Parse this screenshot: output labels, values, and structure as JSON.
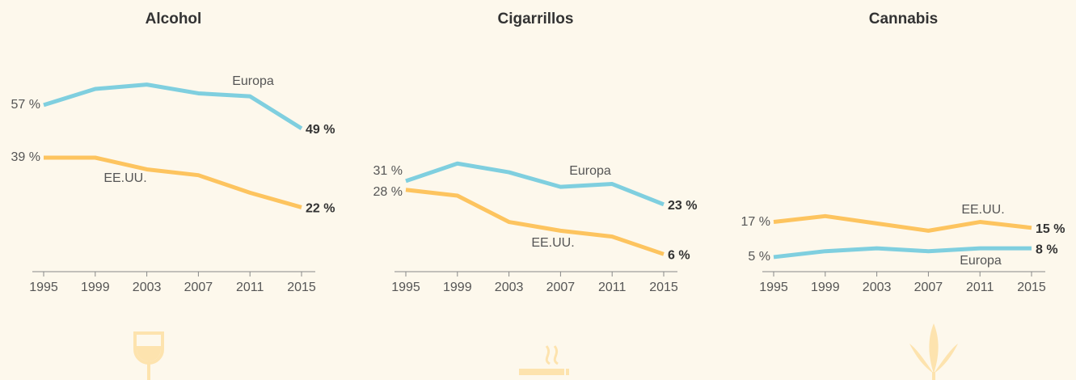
{
  "chart_data": [
    {
      "type": "line",
      "title": "Alcohol",
      "categories": [
        "1995",
        "1999",
        "2003",
        "2007",
        "2011",
        "2015"
      ],
      "ylim": [
        0,
        65
      ],
      "series": [
        {
          "name": "Europa",
          "color": "#7fcfdf",
          "values": [
            57,
            62.5,
            64,
            61,
            60,
            49
          ],
          "value_labels": [
            "57 %",
            null,
            null,
            null,
            null,
            "49 %"
          ]
        },
        {
          "name": "EE.UU.",
          "color": "#fdc45f",
          "values": [
            39,
            39,
            35,
            33,
            27,
            22
          ],
          "value_labels": [
            "39 %",
            null,
            null,
            null,
            null,
            "22 %"
          ]
        }
      ]
    },
    {
      "type": "line",
      "title": "Cigarrillos",
      "categories": [
        "1995",
        "1999",
        "2003",
        "2007",
        "2011",
        "2015"
      ],
      "ylim": [
        0,
        65
      ],
      "series": [
        {
          "name": "Europa",
          "color": "#7fcfdf",
          "values": [
            31,
            37,
            34,
            29,
            30,
            23
          ],
          "value_labels": [
            "31 %",
            null,
            null,
            null,
            null,
            "23 %"
          ]
        },
        {
          "name": "EE.UU.",
          "color": "#fdc45f",
          "values": [
            28,
            26,
            17,
            14,
            12,
            6
          ],
          "value_labels": [
            "28 %",
            null,
            null,
            null,
            null,
            "6 %"
          ]
        }
      ]
    },
    {
      "type": "line",
      "title": "Cannabis",
      "categories": [
        "1995",
        "1999",
        "2003",
        "2007",
        "2011",
        "2015"
      ],
      "ylim": [
        0,
        65
      ],
      "series": [
        {
          "name": "EE.UU.",
          "color": "#fdc45f",
          "values": [
            17,
            19,
            16.5,
            14,
            17,
            15
          ],
          "value_labels": [
            "17 %",
            null,
            null,
            null,
            null,
            "15 %"
          ]
        },
        {
          "name": "Europa",
          "color": "#7fcfdf",
          "values": [
            5,
            7,
            8,
            7,
            8,
            8
          ],
          "value_labels": [
            "5 %",
            null,
            null,
            null,
            null,
            "8 %"
          ]
        }
      ]
    }
  ]
}
